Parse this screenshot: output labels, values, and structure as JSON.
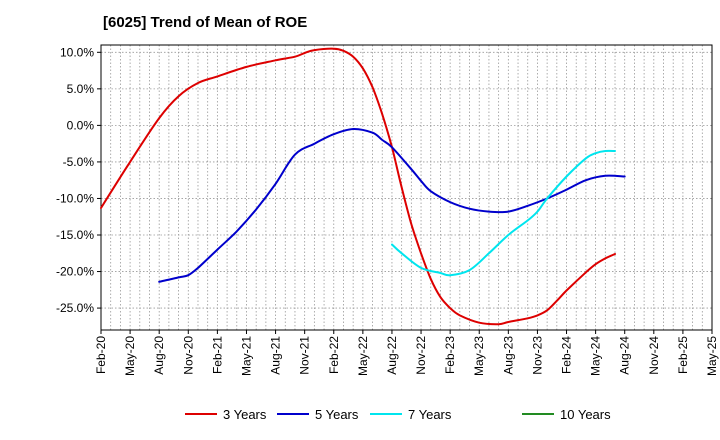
{
  "chart_data": {
    "type": "line",
    "title": "[6025]  Trend of Mean of ROE",
    "xlabel": "",
    "ylabel": "",
    "x_tick_labels": [
      "Feb-20",
      "May-20",
      "Aug-20",
      "Nov-20",
      "Feb-21",
      "May-21",
      "Aug-21",
      "Nov-21",
      "Feb-22",
      "May-22",
      "Aug-22",
      "Nov-22",
      "Feb-23",
      "May-23",
      "Aug-23",
      "Nov-23",
      "Feb-24",
      "May-24",
      "Aug-24",
      "Nov-24",
      "Feb-25",
      "May-25"
    ],
    "y_tick_labels": [
      "10.0%",
      "5.0%",
      "0.0%",
      "-5.0%",
      "-10.0%",
      "-15.0%",
      "-20.0%",
      "-25.0%"
    ],
    "y_ticks": [
      10,
      5,
      0,
      -5,
      -10,
      -15,
      -20,
      -25
    ],
    "ylim": [
      -28,
      11
    ],
    "xlim": [
      0,
      63
    ],
    "grid": true,
    "legend_position": "bottom",
    "series": [
      {
        "name": "3 Years",
        "color": "#dd0000",
        "x": [
          0,
          3,
          6,
          8,
          10,
          12,
          15,
          18,
          20,
          21,
          22,
          24,
          25,
          26,
          27,
          28,
          29,
          30,
          31,
          32,
          33,
          34,
          35,
          36,
          37,
          39,
          41,
          42,
          44,
          45,
          46,
          47,
          48,
          50,
          51,
          52,
          53,
          54,
          55,
          56,
          57,
          58,
          60,
          62,
          63
        ],
        "y": [
          -11.3,
          -5,
          1,
          4,
          5.8,
          6.7,
          8,
          8.9,
          9.4,
          9.9,
          10.3,
          10.5,
          10.2,
          9.4,
          7.8,
          5.2,
          1.5,
          -3,
          -8.5,
          -13.5,
          -17.5,
          -21,
          -23.5,
          -25,
          -26,
          -27,
          -27.2,
          -26.9,
          -26.4,
          -26,
          -25.3,
          -24,
          -22.6,
          -20.1,
          -19,
          -18.2,
          -17.6,
          null,
          null,
          null,
          null,
          null,
          null,
          null,
          null
        ],
        "values_by_month": [
          -11.3,
          -5,
          1,
          4,
          5.8,
          6.7,
          8,
          8.9,
          9.4,
          9.9,
          10.3,
          10.5,
          10.2,
          9.4,
          7.8,
          5.2,
          1.5,
          -3,
          -8.5,
          -13.5,
          -17.5,
          -21,
          -23.5,
          -25,
          -26,
          -27,
          -27.2,
          -26.9,
          -26.4,
          -26,
          -25.3,
          -24,
          -22.6,
          -20.1,
          -19,
          -18.2,
          -17.6
        ]
      },
      {
        "name": "5 Years",
        "color": "#0000cc",
        "x": [
          6,
          8,
          9,
          10,
          12,
          14,
          16,
          18,
          20,
          22,
          24,
          26,
          28,
          29,
          30,
          32,
          33,
          34,
          36,
          38,
          40,
          42,
          44,
          46,
          48,
          50,
          52,
          54,
          56,
          57
        ],
        "y": [
          -21.4,
          -20.8,
          -20.5,
          -19.5,
          -17,
          -14.5,
          -11.5,
          -8,
          -4,
          -2.5,
          -1.2,
          -0.5,
          -1,
          -2,
          -3,
          -6,
          -7.6,
          -9,
          -10.5,
          -11.4,
          -11.8,
          -11.8,
          -11,
          -10,
          -8.8,
          -7.5,
          -6.9,
          -7,
          null,
          null
        ],
        "values_by_month": [
          -21.4,
          -20.8,
          -20.5,
          -19.5,
          -17,
          -14.5,
          -11.5,
          -8,
          -4,
          -2.5,
          -1.2,
          -0.5,
          -1,
          -2,
          -3,
          -6,
          -7.6,
          -9,
          -10.5,
          -11.4,
          -11.8,
          -11.8,
          -11,
          -10,
          -8.8,
          -7.5,
          -6.9,
          -7
        ]
      },
      {
        "name": "7 Years",
        "color": "#00e5ee",
        "x": [
          30,
          31,
          33,
          35,
          36,
          38,
          40,
          42,
          44,
          45,
          46,
          48,
          50,
          51,
          52,
          53
        ],
        "y": [
          -16.3,
          -17.5,
          -19.5,
          -20.2,
          -20.5,
          -19.8,
          -17.5,
          -15,
          -13,
          -11.8,
          -10,
          -7,
          -4.5,
          -3.8,
          -3.5,
          -3.5
        ],
        "values_by_month": [
          -16.3,
          -17.5,
          -19.5,
          -20.2,
          -20.5,
          -19.8,
          -17.5,
          -15,
          -13,
          -11.8,
          -10,
          -7,
          -4.5,
          -3.8,
          -3.5,
          -3.5
        ]
      },
      {
        "name": "10 Years",
        "color": "#228b22",
        "x": [],
        "y": [],
        "values_by_month": []
      }
    ]
  }
}
